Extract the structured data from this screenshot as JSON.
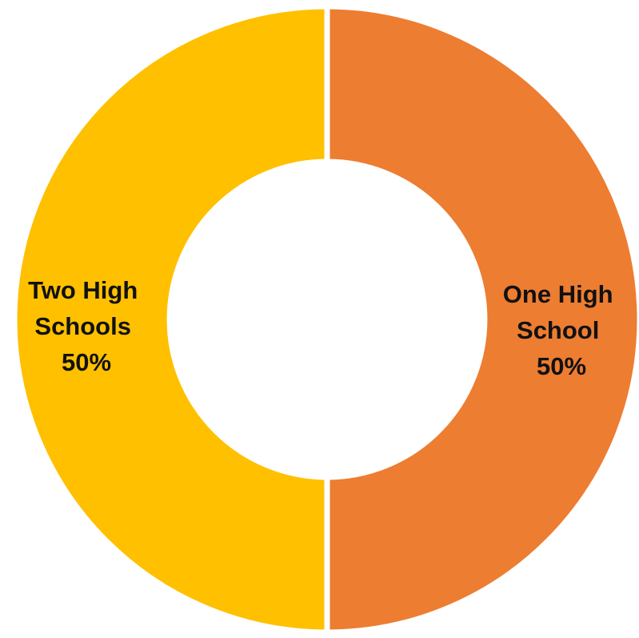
{
  "chart_data": {
    "type": "pie",
    "variant": "donut",
    "title": "",
    "legend": "none",
    "slices": [
      {
        "name": "One High School",
        "label_lines": [
          "One High",
          "School"
        ],
        "value": 50,
        "percent_label": "50%",
        "color": "#ED7D31"
      },
      {
        "name": "Two High Schools",
        "label_lines": [
          "Two High",
          "Schools"
        ],
        "value": 50,
        "percent_label": "50%",
        "color": "#FFC000"
      }
    ],
    "start": "top",
    "direction": "clockwise",
    "separator_color": "#ffffff"
  }
}
